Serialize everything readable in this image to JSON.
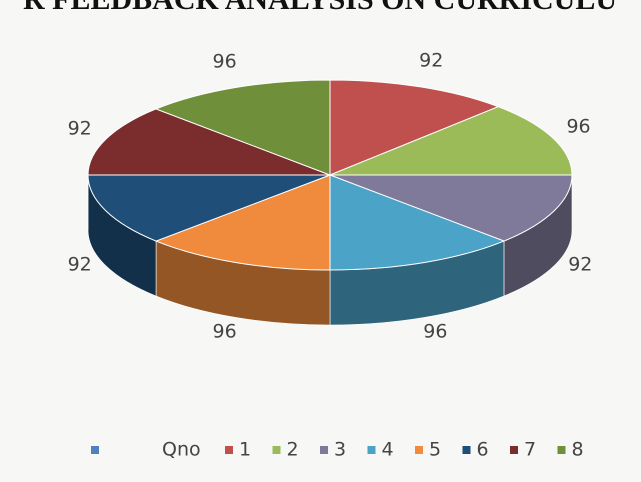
{
  "chart_data": {
    "type": "pie3d",
    "title": "R FEEDBACK ANALYSIS ON CURRICULU",
    "legend_label": "Qno",
    "legend_label_color": "#4f81bd",
    "categories": [
      "1",
      "2",
      "3",
      "4",
      "5",
      "6",
      "7",
      "8"
    ],
    "values": [
      92,
      96,
      92,
      96,
      96,
      92,
      92,
      96
    ],
    "colors": [
      "#c0504d",
      "#9bbb59",
      "#7f7a99",
      "#4ba3c8",
      "#f08a3c",
      "#1f4e79",
      "#7b2c2c",
      "#6f8f3a"
    ],
    "legend": "bottom"
  }
}
